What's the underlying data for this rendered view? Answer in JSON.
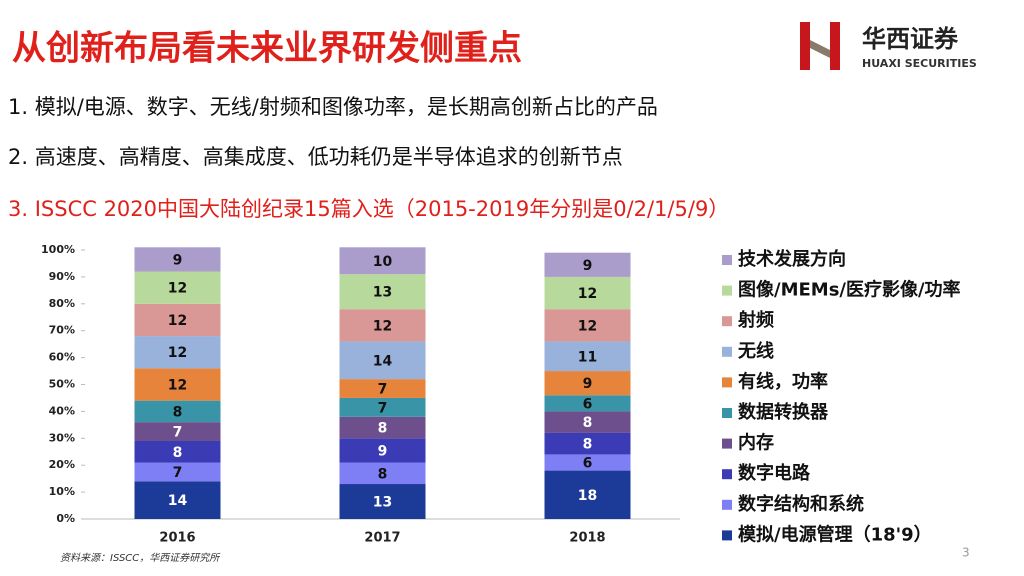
{
  "slide": {
    "title": "从创新布局看未来业界研发侧重点",
    "logo_cn": "华西证券",
    "logo_en": "HUAXI SECURITIES",
    "points": [
      "1. 模拟/电源、数字、无线/射频和图像功率，是长期高创新占比的产品",
      "2. 高速度、高精度、高集成度、低功耗仍是半导体追求的创新节点",
      "3. ISSCC 2020中国大陆创纪录15篇入选（2015-2019年分别是0/2/1/5/9）"
    ],
    "source": "资料来源：ISSCC，华西证券研究所",
    "page": "3"
  },
  "chart_data": {
    "type": "stacked_bar",
    "categories": [
      "2016",
      "2017",
      "2018"
    ],
    "series": [
      {
        "name": "模拟/电源管理（18'9）",
        "color": "#1c3a97",
        "values": [
          14,
          13,
          18
        ]
      },
      {
        "name": "数字结构和系统",
        "color": "#7f7ff5",
        "values": [
          7,
          8,
          6
        ]
      },
      {
        "name": "数字电路",
        "color": "#3b3bb5",
        "values": [
          8,
          9,
          8
        ]
      },
      {
        "name": "内存",
        "color": "#6c4f8c",
        "values": [
          7,
          8,
          8
        ]
      },
      {
        "name": "数据转换器",
        "color": "#3894a6",
        "values": [
          8,
          7,
          6
        ]
      },
      {
        "name": "有线，功率",
        "color": "#e6843b",
        "values": [
          12,
          7,
          9
        ]
      },
      {
        "name": "无线",
        "color": "#98b2dc",
        "values": [
          12,
          14,
          11
        ]
      },
      {
        "name": "射频",
        "color": "#d99896",
        "values": [
          12,
          12,
          12
        ]
      },
      {
        "name": "图像/MEMs/医疗影像/功率",
        "color": "#b8d99c",
        "values": [
          12,
          13,
          12
        ]
      },
      {
        "name": "技术发展方向",
        "color": "#aa9ccb",
        "values": [
          9,
          10,
          9
        ]
      }
    ],
    "ylim": [
      0,
      100
    ],
    "yticks": [
      {
        "value": 0,
        "label": "0%"
      },
      {
        "value": 10,
        "label": "10%"
      },
      {
        "value": 20,
        "label": "20%"
      },
      {
        "value": 30,
        "label": "30%"
      },
      {
        "value": 40,
        "label": "40%"
      },
      {
        "value": 50,
        "label": "50%"
      },
      {
        "value": 60,
        "label": "60%"
      },
      {
        "value": 70,
        "label": "70%"
      },
      {
        "value": 80,
        "label": "80%"
      },
      {
        "value": 90,
        "label": "90%"
      },
      {
        "value": 100,
        "label": "100%"
      }
    ],
    "legend": "right"
  }
}
